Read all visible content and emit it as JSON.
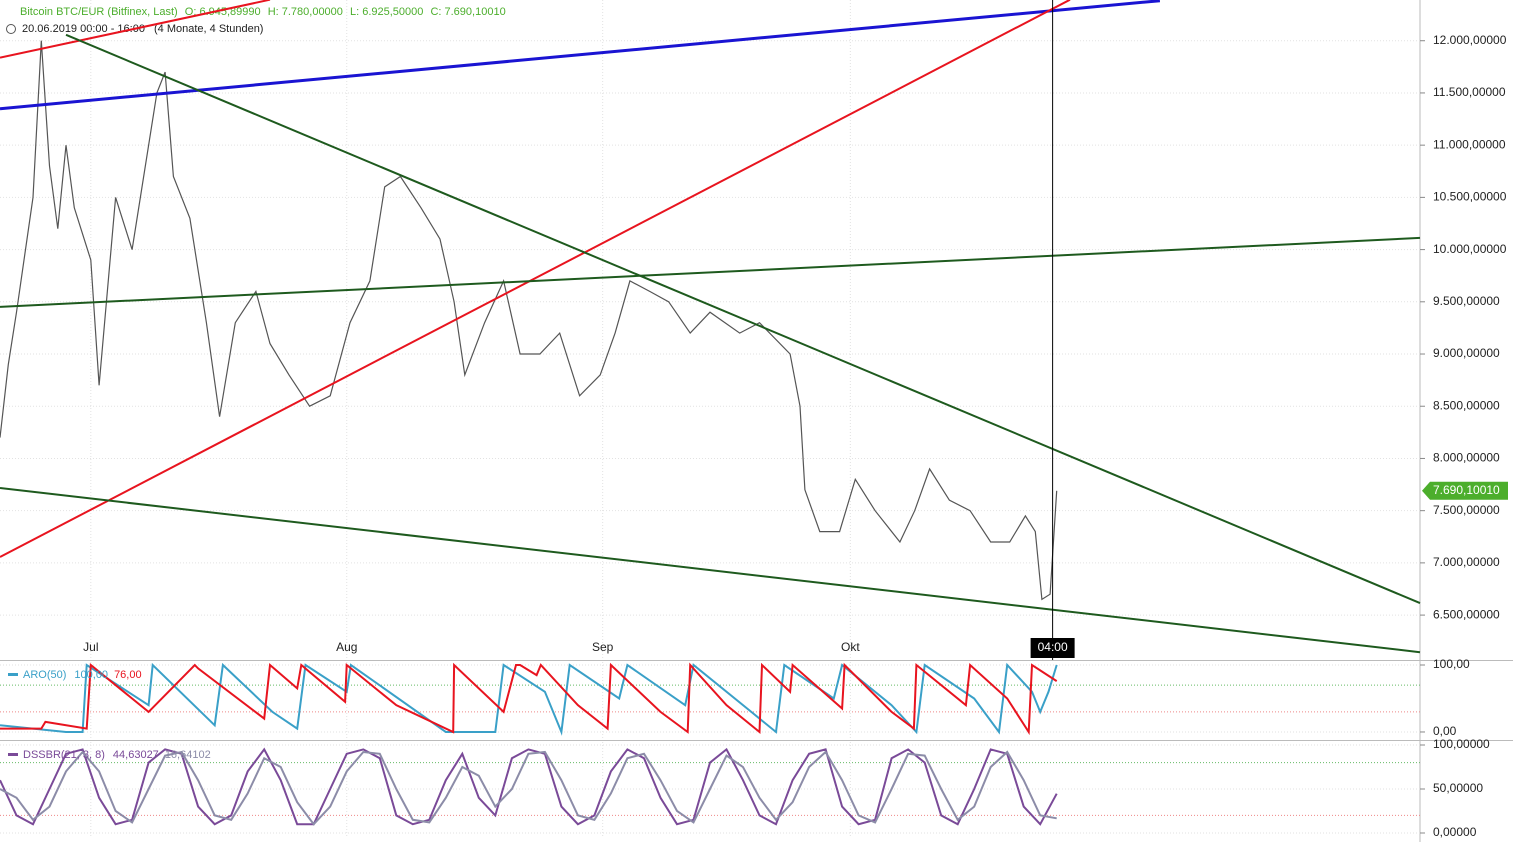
{
  "header": {
    "symbol": "Bitcoin BTC/EUR (Bitfinex, Last)",
    "open": "O: 6.945,89990",
    "high": "H: 7.780,00000",
    "low": "L: 6.925,50000",
    "close": "C: 7.690,10010",
    "range": "20.06.2019 00:00 - 16:00",
    "period": "(4 Monate, 4 Stunden)"
  },
  "chart_data": [
    {
      "type": "line",
      "color": "#555555",
      "x": [
        0,
        1,
        2,
        4,
        5,
        6,
        7,
        8,
        9,
        11,
        12,
        14,
        16,
        19,
        20,
        21,
        23,
        25,
        26.6,
        28.5,
        31,
        32.7,
        35,
        37.5,
        40,
        42.4,
        44.8,
        46.6,
        48.5,
        51,
        53.3,
        55,
        56.3,
        58.7,
        61,
        63,
        65.4,
        67.8,
        70.2,
        72.7,
        74.5,
        76.3,
        78.7,
        81,
        83.6,
        86,
        89.6,
        92,
        95.7,
        96.9,
        97.5,
        99.3,
        101.7,
        103.6,
        106,
        109,
        110.8,
        112.6,
        115,
        117.5,
        120,
        122.3,
        124.2,
        125.4,
        126.2,
        127.2,
        128
      ],
      "values": [
        8200,
        8900,
        9400,
        10500,
        12000,
        10800,
        10200,
        11000,
        10400,
        9900,
        8700,
        10500,
        10000,
        11500,
        11700,
        10700,
        10300,
        9300,
        8400,
        9300,
        9600,
        9100,
        8800,
        8500,
        8600,
        9300,
        9700,
        10600,
        10700,
        10400,
        10100,
        9500,
        8800,
        9300,
        9700,
        9000,
        9000,
        9200,
        8600,
        8800,
        9200,
        9700,
        9600,
        9500,
        9200,
        9400,
        9200,
        9300,
        9000,
        8500,
        7700,
        7300,
        7300,
        7800,
        7500,
        7200,
        7500,
        7900,
        7600,
        7500,
        7200,
        7200,
        7450,
        7300,
        6650,
        6700,
        7690.1001
      ],
      "xlim": [
        0,
        172
      ],
      "xticks": [
        {
          "value": 11,
          "label": "Jul"
        },
        {
          "value": 42,
          "label": "Aug"
        },
        {
          "value": 73,
          "label": "Sep"
        },
        {
          "value": 103,
          "label": "Okt"
        }
      ],
      "ylim": [
        6070,
        12390
      ],
      "yticks": [
        {
          "value": 6500,
          "label": "6.500,00000"
        },
        {
          "value": 7000,
          "label": "7.000,00000"
        },
        {
          "value": 7500,
          "label": "7.500,00000"
        },
        {
          "value": 8000,
          "label": "8.000,00000"
        },
        {
          "value": 8500,
          "label": "8.500,00000"
        },
        {
          "value": 9000,
          "label": "9.000,00000"
        },
        {
          "value": 9500,
          "label": "9.500,00000"
        },
        {
          "value": 10000,
          "label": "10.000,00000"
        },
        {
          "value": 10500,
          "label": "10.500,00000"
        },
        {
          "value": 11000,
          "label": "11.000,00000"
        },
        {
          "value": 11500,
          "label": "11.500,00000"
        },
        {
          "value": 12000,
          "label": "12.000,00000"
        }
      ],
      "grid": true,
      "trendlines": [
        {
          "color": "#1a14d2",
          "x": [
            0,
            140.5
          ],
          "values": [
            11349,
            12383
          ]
        },
        {
          "color": "#e8141f",
          "x": [
            0,
            129.6
          ],
          "values": [
            7056,
            12393
          ]
        },
        {
          "color": "#e8141f",
          "x": [
            0,
            32.7
          ],
          "values": [
            11837,
            12393
          ]
        },
        {
          "color": "#1e5a1e",
          "x": [
            0,
            172
          ],
          "values": [
            9451,
            10112
          ]
        },
        {
          "color": "#1e5a1e",
          "x": [
            8,
            172
          ],
          "values": [
            12057,
            6615
          ]
        },
        {
          "color": "#1e5a1e",
          "x": [
            0,
            172
          ],
          "values": [
            7717,
            6145
          ]
        }
      ],
      "crosshair": {
        "x": 127.5,
        "label": "04:00"
      },
      "last_price": {
        "value": 7690.1001,
        "label": "7.690,10010",
        "color": "#4cae2c"
      }
    },
    {
      "type": "line",
      "title": "ARO(50)",
      "readouts": [
        "100,00",
        "76,00"
      ],
      "ylim": [
        -9,
        104.5
      ],
      "yticks": [
        {
          "value": 0,
          "label": "0,00"
        },
        {
          "value": 100,
          "label": "100,00"
        }
      ],
      "levels": [
        70,
        30
      ],
      "series": [
        {
          "color": "#3aa0c8",
          "x": [
            0,
            8,
            10,
            10.5,
            18,
            18.5,
            26,
            27,
            33,
            36,
            37,
            42,
            42.5,
            54,
            60,
            61,
            66,
            68,
            69,
            75,
            76,
            83,
            84,
            91,
            94,
            95,
            101,
            102,
            108,
            111,
            112,
            118,
            121,
            122,
            125,
            126,
            127,
            128
          ],
          "values": [
            10,
            0,
            0,
            100,
            40,
            100,
            10,
            100,
            30,
            5,
            100,
            60,
            100,
            0,
            0,
            100,
            60,
            0,
            100,
            50,
            100,
            40,
            100,
            30,
            0,
            100,
            50,
            100,
            40,
            0,
            100,
            50,
            0,
            100,
            60,
            30,
            60,
            100
          ]
        },
        {
          "color": "#e8141f",
          "x": [
            0,
            5,
            5.5,
            10.5,
            11,
            18,
            23.6,
            24,
            32,
            32.7,
            36,
            36.5,
            41.8,
            42,
            48,
            54.9,
            55,
            61,
            62.5,
            63,
            65,
            65.5,
            70,
            73.6,
            74,
            80,
            83.3,
            83.6,
            88,
            92,
            92.3,
            95.7,
            96,
            102,
            102.3,
            108,
            110.7,
            111,
            117,
            117.5,
            122,
            124.6,
            125,
            128
          ],
          "values": [
            5,
            5,
            15,
            5,
            100,
            30,
            100,
            95,
            20,
            100,
            65,
            100,
            45,
            100,
            40,
            0,
            100,
            30,
            100,
            100,
            85,
            100,
            40,
            5,
            100,
            30,
            0,
            100,
            40,
            0,
            100,
            60,
            100,
            35,
            100,
            30,
            5,
            100,
            40,
            100,
            50,
            0,
            100,
            76
          ]
        }
      ]
    },
    {
      "type": "line",
      "title": "DSSBR(21, 3, 8)",
      "readouts": [
        "44,63027",
        "16,64102"
      ],
      "ylim": [
        -5.7,
        103.4
      ],
      "yticks": [
        {
          "value": 0,
          "label": "0,00000"
        },
        {
          "value": 50,
          "label": "50,00000"
        },
        {
          "value": 100,
          "label": "100,00000"
        }
      ],
      "levels": [
        80,
        20
      ],
      "series": [
        {
          "color": "#7a4a98",
          "x": [
            0,
            2,
            4,
            6,
            8,
            10,
            12,
            14,
            16,
            18,
            20,
            22,
            24,
            26,
            28,
            30,
            32,
            34,
            36,
            38,
            40,
            42,
            44,
            46,
            48,
            50,
            52,
            54,
            56,
            58,
            60,
            62,
            64,
            66,
            68,
            70,
            72,
            74,
            76,
            78,
            80,
            82,
            84,
            86,
            88,
            90,
            92,
            94,
            96,
            98,
            100,
            102,
            104,
            106,
            108,
            110,
            112,
            114,
            116,
            118,
            120,
            122,
            124,
            126,
            128
          ],
          "values": [
            60,
            20,
            10,
            50,
            90,
            95,
            40,
            10,
            15,
            80,
            95,
            90,
            30,
            10,
            20,
            70,
            95,
            60,
            10,
            10,
            50,
            90,
            95,
            85,
            20,
            10,
            15,
            60,
            90,
            40,
            20,
            85,
            95,
            90,
            30,
            10,
            20,
            70,
            95,
            85,
            40,
            10,
            15,
            80,
            95,
            60,
            20,
            10,
            60,
            90,
            95,
            30,
            10,
            15,
            85,
            95,
            80,
            20,
            10,
            50,
            95,
            90,
            30,
            10,
            44.63027
          ]
        },
        {
          "color": "#8c8ca8",
          "x": [
            0,
            2,
            4,
            6,
            8,
            10,
            12,
            14,
            16,
            18,
            20,
            22,
            24,
            26,
            28,
            30,
            32,
            34,
            36,
            38,
            40,
            42,
            44,
            46,
            48,
            50,
            52,
            54,
            56,
            58,
            60,
            62,
            64,
            66,
            68,
            70,
            72,
            74,
            76,
            78,
            80,
            82,
            84,
            86,
            88,
            90,
            92,
            94,
            96,
            98,
            100,
            102,
            104,
            106,
            108,
            110,
            112,
            114,
            116,
            118,
            120,
            122,
            124,
            126,
            128
          ],
          "values": [
            50,
            40,
            15,
            30,
            70,
            92,
            70,
            25,
            12,
            50,
            88,
            92,
            60,
            20,
            15,
            45,
            85,
            75,
            35,
            10,
            30,
            70,
            92,
            90,
            50,
            15,
            12,
            40,
            75,
            65,
            30,
            50,
            90,
            92,
            60,
            20,
            15,
            45,
            85,
            90,
            60,
            25,
            12,
            50,
            88,
            75,
            40,
            15,
            35,
            75,
            92,
            60,
            20,
            12,
            50,
            90,
            88,
            50,
            15,
            30,
            75,
            92,
            60,
            20,
            16.64102
          ]
        }
      ]
    }
  ]
}
